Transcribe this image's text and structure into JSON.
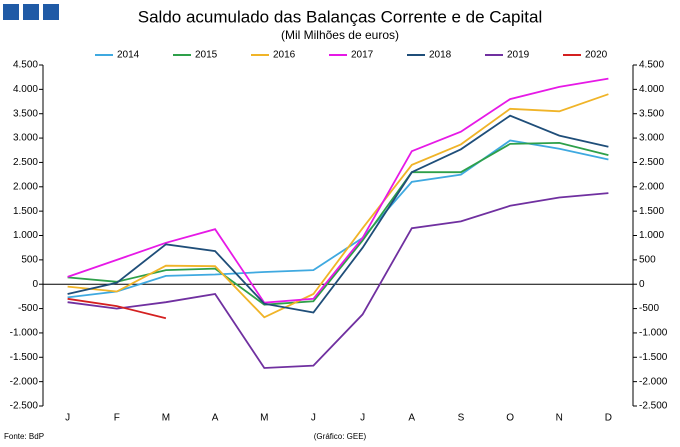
{
  "chart_data": {
    "type": "line",
    "title": "Saldo acumulado das Balanças Corrente e de Capital",
    "subtitle": "(Mil Milhões de euros)",
    "source": "Fonte: BdP",
    "credit": "(Gráfico: GEE)",
    "categories": [
      "J",
      "F",
      "M",
      "A",
      "M",
      "J",
      "J",
      "A",
      "S",
      "O",
      "N",
      "D"
    ],
    "ylim": [
      -2500,
      4500
    ],
    "yticks": [
      {
        "value": 4500,
        "label": "4.500"
      },
      {
        "value": 4000,
        "label": "4.000"
      },
      {
        "value": 3500,
        "label": "3.500"
      },
      {
        "value": 3000,
        "label": "3.000"
      },
      {
        "value": 2500,
        "label": "2.500"
      },
      {
        "value": 2000,
        "label": "2.000"
      },
      {
        "value": 1500,
        "label": "1.500"
      },
      {
        "value": 1000,
        "label": "1.000"
      },
      500,
      0,
      -500,
      {
        "value": -1000,
        "label": "-1.000"
      },
      {
        "value": -1500,
        "label": "-1.500"
      },
      {
        "value": -2000,
        "label": "-2.000"
      },
      {
        "value": -2500,
        "label": "-2.500"
      }
    ],
    "grid": false,
    "legend": "top",
    "series": [
      {
        "name": "2014",
        "color": "#3fa9e0",
        "values": [
          -270,
          -150,
          170,
          200,
          250,
          290,
          950,
          2100,
          2250,
          2950,
          2780,
          2560
        ]
      },
      {
        "name": "2015",
        "color": "#2ea04a",
        "values": [
          140,
          50,
          290,
          320,
          -420,
          -350,
          900,
          2300,
          2300,
          2880,
          2900,
          2650
        ]
      },
      {
        "name": "2016",
        "color": "#f0b428",
        "values": [
          -50,
          -150,
          380,
          370,
          -680,
          -200,
          1150,
          2450,
          2870,
          3600,
          3550,
          3900
        ]
      },
      {
        "name": "2017",
        "color": "#e619e6",
        "values": [
          150,
          500,
          850,
          1130,
          -380,
          -300,
          950,
          2730,
          3130,
          3800,
          4050,
          4220
        ]
      },
      {
        "name": "2018",
        "color": "#1f4e79",
        "values": [
          -200,
          30,
          820,
          680,
          -400,
          -580,
          750,
          2300,
          2770,
          3460,
          3050,
          2820
        ]
      },
      {
        "name": "2019",
        "color": "#7030a0",
        "values": [
          -370,
          -500,
          -370,
          -200,
          -1720,
          -1670,
          -620,
          1150,
          1290,
          1610,
          1780,
          1870
        ]
      },
      {
        "name": "2020",
        "color": "#d42020",
        "values": [
          -300,
          -450,
          -700,
          null,
          null,
          null,
          null,
          null,
          null,
          null,
          null,
          null
        ]
      }
    ]
  }
}
